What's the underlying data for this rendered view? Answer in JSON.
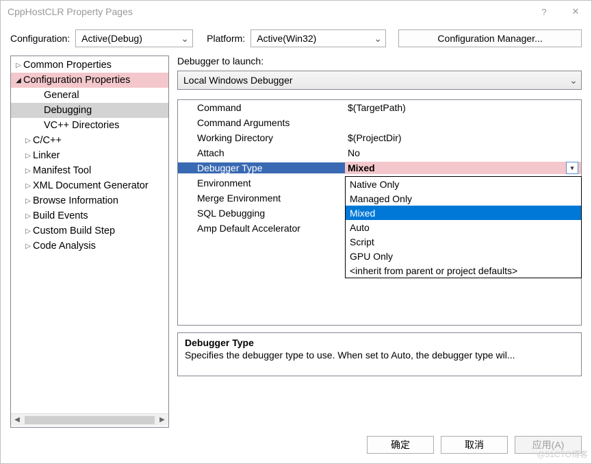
{
  "colors": {
    "highlight_pink": "#f3c7cb",
    "selection_gray": "#d3d3d3",
    "row_selected_blue": "#3969b3",
    "dropdown_selected": "#0078d7",
    "border": "#828790"
  },
  "window": {
    "title": "CppHostCLR Property Pages"
  },
  "toolbar": {
    "config_label": "Configuration:",
    "config_value": "Active(Debug)",
    "platform_label": "Platform:",
    "platform_value": "Active(Win32)",
    "manager_button": "Configuration Manager..."
  },
  "tree": {
    "items": [
      {
        "label": "Common Properties",
        "level": 0,
        "expander": "▷"
      },
      {
        "label": "Configuration Properties",
        "level": 0,
        "expander": "◢",
        "hl": "pink"
      },
      {
        "label": "General",
        "level": 2
      },
      {
        "label": "Debugging",
        "level": 2,
        "hl": "sel"
      },
      {
        "label": "VC++ Directories",
        "level": 2
      },
      {
        "label": "C/C++",
        "level": 1,
        "expander": "▷"
      },
      {
        "label": "Linker",
        "level": 1,
        "expander": "▷"
      },
      {
        "label": "Manifest Tool",
        "level": 1,
        "expander": "▷"
      },
      {
        "label": "XML Document Generator",
        "level": 1,
        "expander": "▷"
      },
      {
        "label": "Browse Information",
        "level": 1,
        "expander": "▷"
      },
      {
        "label": "Build Events",
        "level": 1,
        "expander": "▷"
      },
      {
        "label": "Custom Build Step",
        "level": 1,
        "expander": "▷"
      },
      {
        "label": "Code Analysis",
        "level": 1,
        "expander": "▷"
      }
    ]
  },
  "launch": {
    "label": "Debugger to launch:",
    "value": "Local Windows Debugger"
  },
  "grid": {
    "rows": [
      {
        "key": "Command",
        "val": "$(TargetPath)"
      },
      {
        "key": "Command Arguments",
        "val": ""
      },
      {
        "key": "Working Directory",
        "val": "$(ProjectDir)"
      },
      {
        "key": "Attach",
        "val": "No"
      },
      {
        "key": "Debugger Type",
        "val": "Mixed",
        "selected": true
      },
      {
        "key": "Environment",
        "val": ""
      },
      {
        "key": "Merge Environment",
        "val": ""
      },
      {
        "key": "SQL Debugging",
        "val": ""
      },
      {
        "key": "Amp Default Accelerator",
        "val": ""
      }
    ]
  },
  "dropdown": {
    "options": [
      "Native Only",
      "Managed Only",
      "Mixed",
      "Auto",
      "Script",
      "GPU Only",
      "<inherit from parent or project defaults>"
    ],
    "selected_index": 2
  },
  "description": {
    "title": "Debugger Type",
    "text": "Specifies the debugger type to use. When set to Auto, the debugger type wil..."
  },
  "footer": {
    "ok": "确定",
    "cancel": "取消",
    "apply": "应用(A)"
  },
  "watermark": "@51CTO博客"
}
